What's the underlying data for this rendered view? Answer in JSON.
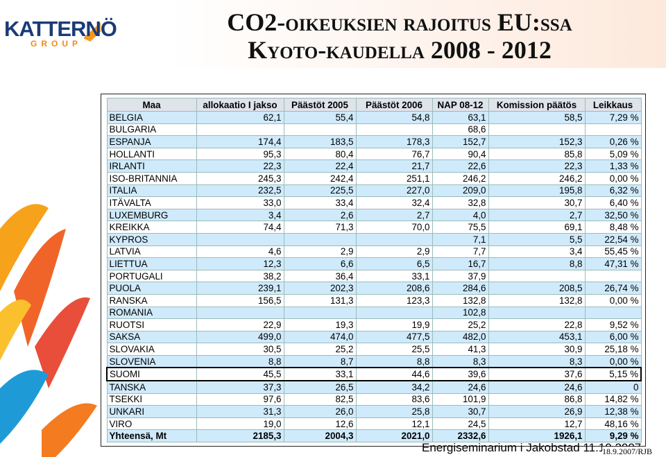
{
  "logo": {
    "name": "KATTERNÖ",
    "sub": "GROUP"
  },
  "header": {
    "title_line1": "CO2-oikeuksien rajoitus EU:ssa",
    "title_line2": "Kyoto-kaudella 2008 - 2012"
  },
  "table": {
    "columns": [
      "Maa",
      "allokaatio I jakso",
      "Päästöt 2005",
      "Päästöt 2006",
      "NAP 08-12",
      "Komission päätös",
      "Leikkaus"
    ],
    "rows": [
      [
        "BELGIA",
        "62,1",
        "55,4",
        "54,8",
        "63,1",
        "58,5",
        "7,29 %"
      ],
      [
        "BULGARIA",
        null,
        null,
        null,
        "68,6",
        null,
        null
      ],
      [
        "ESPANJA",
        "174,4",
        "183,5",
        "178,3",
        "152,7",
        "152,3",
        "0,26 %"
      ],
      [
        "HOLLANTI",
        "95,3",
        "80,4",
        "76,7",
        "90,4",
        "85,8",
        "5,09 %"
      ],
      [
        "IRLANTI",
        "22,3",
        "22,4",
        "21,7",
        "22,6",
        "22,3",
        "1,33 %"
      ],
      [
        "ISO-BRITANNIA",
        "245,3",
        "242,4",
        "251,1",
        "246,2",
        "246,2",
        "0,00 %"
      ],
      [
        "ITALIA",
        "232,5",
        "225,5",
        "227,0",
        "209,0",
        "195,8",
        "6,32 %"
      ],
      [
        "ITÄVALTA",
        "33,0",
        "33,4",
        "32,4",
        "32,8",
        "30,7",
        "6,40 %"
      ],
      [
        "LUXEMBURG",
        "3,4",
        "2,6",
        "2,7",
        "4,0",
        "2,7",
        "32,50 %"
      ],
      [
        "KREIKKA",
        "74,4",
        "71,3",
        "70,0",
        "75,5",
        "69,1",
        "8,48 %"
      ],
      [
        "KYPROS",
        null,
        null,
        null,
        "7,1",
        "5,5",
        "22,54 %"
      ],
      [
        "LATVIA",
        "4,6",
        "2,9",
        "2,9",
        "7,7",
        "3,4",
        "55,45 %"
      ],
      [
        "LIETTUA",
        "12,3",
        "6,6",
        "6,5",
        "16,7",
        "8,8",
        "47,31 %"
      ],
      [
        "PORTUGALI",
        "38,2",
        "36,4",
        "33,1",
        "37,9",
        null,
        null
      ],
      [
        "PUOLA",
        "239,1",
        "202,3",
        "208,6",
        "284,6",
        "208,5",
        "26,74 %"
      ],
      [
        "RANSKA",
        "156,5",
        "131,3",
        "123,3",
        "132,8",
        "132,8",
        "0,00 %"
      ],
      [
        "ROMANIA",
        null,
        null,
        null,
        "102,8",
        null,
        null
      ],
      [
        "RUOTSI",
        "22,9",
        "19,3",
        "19,9",
        "25,2",
        "22,8",
        "9,52 %"
      ],
      [
        "SAKSA",
        "499,0",
        "474,0",
        "477,5",
        "482,0",
        "453,1",
        "6,00 %"
      ],
      [
        "SLOVAKIA",
        "30,5",
        "25,2",
        "25,5",
        "41,3",
        "30,9",
        "25,18 %"
      ],
      [
        "SLOVENIA",
        "8,8",
        "8,7",
        "8,8",
        "8,3",
        "8,3",
        "0,00 %"
      ],
      [
        "SUOMI",
        "45,5",
        "33,1",
        "44,6",
        "39,6",
        "37,6",
        "5,15 %"
      ],
      [
        "TANSKA",
        "37,3",
        "26,5",
        "34,2",
        "24,6",
        "24,6",
        "0"
      ],
      [
        "TSEKKI",
        "97,6",
        "82,5",
        "83,6",
        "101,9",
        "86,8",
        "14,82 %"
      ],
      [
        "UNKARI",
        "31,3",
        "26,0",
        "25,8",
        "30,7",
        "26,9",
        "12,38 %"
      ],
      [
        "VIRO",
        "19,0",
        "12,6",
        "12,1",
        "24,5",
        "12,7",
        "48,16 %"
      ],
      [
        "Yhteensä, Mt",
        "2185,3",
        "2004,3",
        "2021,0",
        "2332,6",
        "1926,1",
        "9,29 %"
      ]
    ],
    "highlighted_row": "SUOMI"
  },
  "footer": {
    "event": "Energiseminarium i Jakobstad 11.10.2007",
    "date_author": "18.9.2007/RJB"
  }
}
